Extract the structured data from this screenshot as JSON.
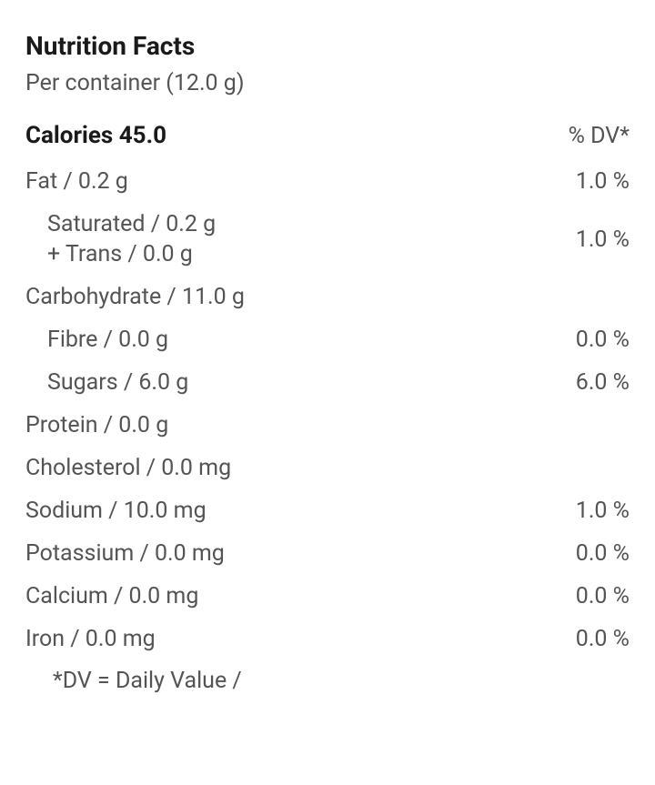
{
  "title": "Nutrition Facts",
  "serving": "Per container (12.0 g)",
  "calories_label": "Calories 45.0",
  "dv_header": "% DV*",
  "rows": {
    "fat": {
      "label": "Fat / 0.2 g",
      "dv": "1.0 %"
    },
    "sat": {
      "label": "Saturated / 0.2 g",
      "trans": "+ Trans / 0.0 g",
      "dv": "1.0 %"
    },
    "carb": {
      "label": "Carbohydrate / 11.0 g",
      "dv": ""
    },
    "fibre": {
      "label": "Fibre / 0.0 g",
      "dv": "0.0 %"
    },
    "sugars": {
      "label": "Sugars / 6.0 g",
      "dv": "6.0 %"
    },
    "protein": {
      "label": "Protein / 0.0 g",
      "dv": ""
    },
    "cholesterol": {
      "label": "Cholesterol / 0.0 mg",
      "dv": ""
    },
    "sodium": {
      "label": "Sodium / 10.0 mg",
      "dv": "1.0 %"
    },
    "potassium": {
      "label": "Potassium / 0.0 mg",
      "dv": "0.0 %"
    },
    "calcium": {
      "label": "Calcium / 0.0 mg",
      "dv": "0.0 %"
    },
    "iron": {
      "label": "Iron / 0.0 mg",
      "dv": "0.0 %"
    }
  },
  "footnote": "*DV = Daily Value /",
  "colors": {
    "text_primary": "#1a1a1a",
    "text_secondary": "#545454",
    "background": "#ffffff"
  },
  "typography": {
    "title_fontsize": 28,
    "title_weight": 700,
    "body_fontsize": 25,
    "body_weight": 400,
    "calories_fontsize": 26,
    "calories_weight": 700
  }
}
